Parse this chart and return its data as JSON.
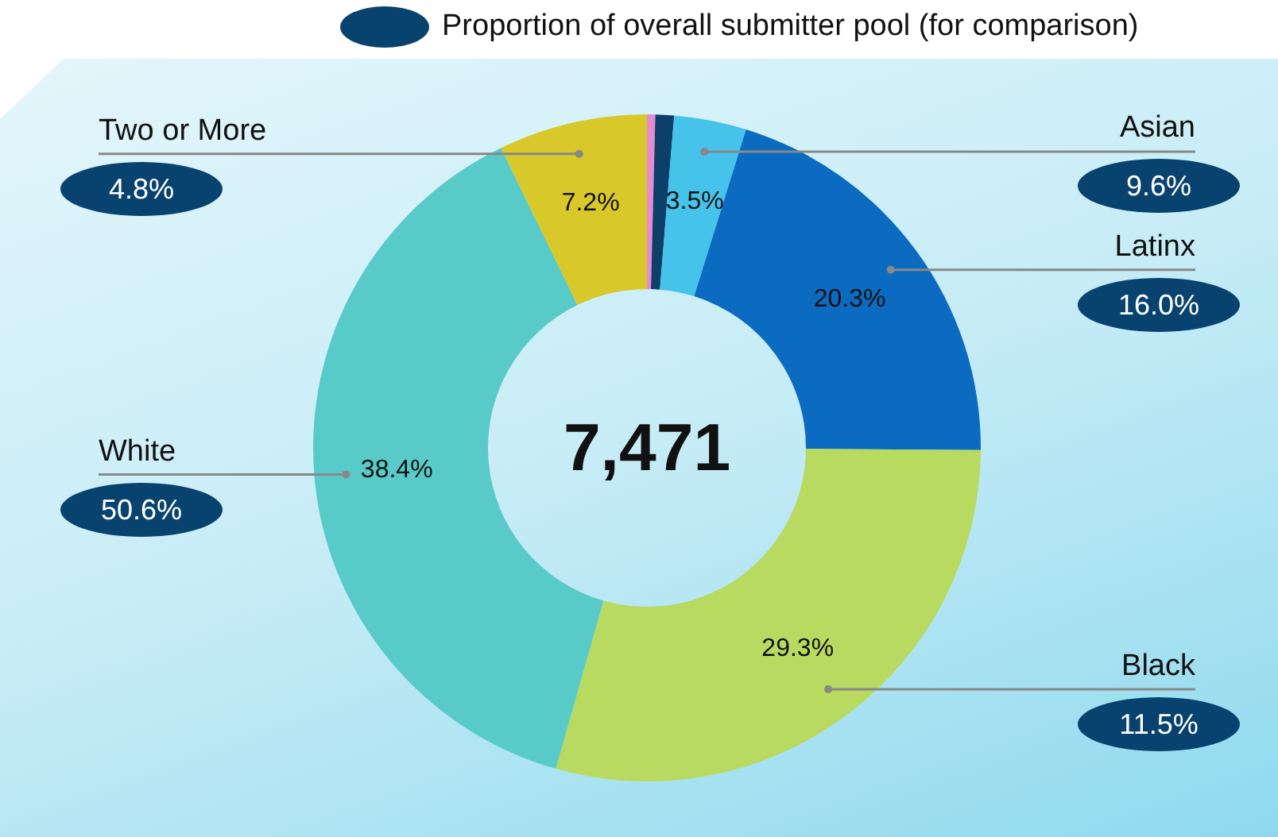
{
  "chart_data": {
    "type": "donut",
    "categories": [
      null,
      null,
      "Asian",
      "Latinx",
      "Black",
      "White",
      "Two or More"
    ],
    "values": [
      0.4,
      0.9,
      3.5,
      20.3,
      29.3,
      38.4,
      7.2
    ],
    "colors": [
      "#e68bd0",
      "#0d3f6b",
      "#45c3ea",
      "#0b6bc1",
      "#b8da60",
      "#58cbc8",
      "#d8c82a"
    ],
    "value_labels": [
      null,
      null,
      "3.5%",
      "20.3%",
      "29.3%",
      "38.4%",
      "7.2%"
    ],
    "annotations": [
      "7,471",
      "Proportion of overall submitter pool (for comparison)",
      "9.6%",
      "16.0%",
      "11.5%",
      "50.6%",
      "4.8%"
    ],
    "legend": false
  }
}
